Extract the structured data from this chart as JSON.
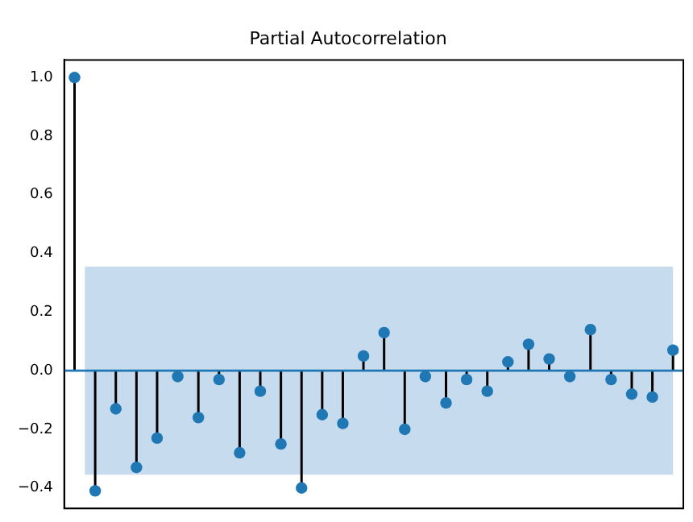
{
  "chart_data": {
    "type": "lollipop",
    "title": "Partial Autocorrelation",
    "categories": [
      null,
      null,
      null,
      null,
      null,
      null,
      null,
      null,
      null,
      null,
      null,
      null,
      null,
      null,
      null,
      null,
      null,
      null,
      null,
      null,
      null,
      null,
      null,
      null,
      null,
      null,
      null,
      null,
      null,
      null
    ],
    "series": [
      {
        "color": "#1f77b4",
        "values": [
          1.0,
          -0.41,
          -0.13,
          -0.33,
          -0.23,
          -0.02,
          -0.16,
          -0.03,
          -0.28,
          -0.07,
          -0.25,
          -0.4,
          -0.15,
          -0.18,
          0.05,
          0.13,
          -0.2,
          -0.02,
          -0.11,
          -0.03,
          -0.07,
          0.03,
          0.09,
          0.04,
          -0.02,
          0.14,
          -0.03,
          -0.08,
          -0.09,
          0.07
        ]
      }
    ],
    "ylim": [
      -0.47,
      1.06
    ],
    "yticks": [
      {
        "value": -0.4,
        "label": "−0.4"
      },
      {
        "value": -0.2,
        "label": "−0.2"
      },
      {
        "value": 0,
        "label": "0.0"
      },
      {
        "value": 0.2,
        "label": "0.2"
      },
      {
        "value": 0.4,
        "label": "0.4"
      },
      {
        "value": 0.6,
        "label": "0.6"
      },
      {
        "value": 0.8,
        "label": "0.8"
      },
      {
        "value": 1.0,
        "label": "1.0"
      }
    ],
    "bands": [
      {
        "axis": "y",
        "from": -0.355,
        "to": 0.355,
        "color": "#c6dbee"
      }
    ],
    "ref_lines": [
      {
        "axis": "y",
        "value": 0,
        "color": "#1f77b4"
      }
    ],
    "tick_labels": "y",
    "marker": "circle",
    "grid": false,
    "legend": false
  }
}
